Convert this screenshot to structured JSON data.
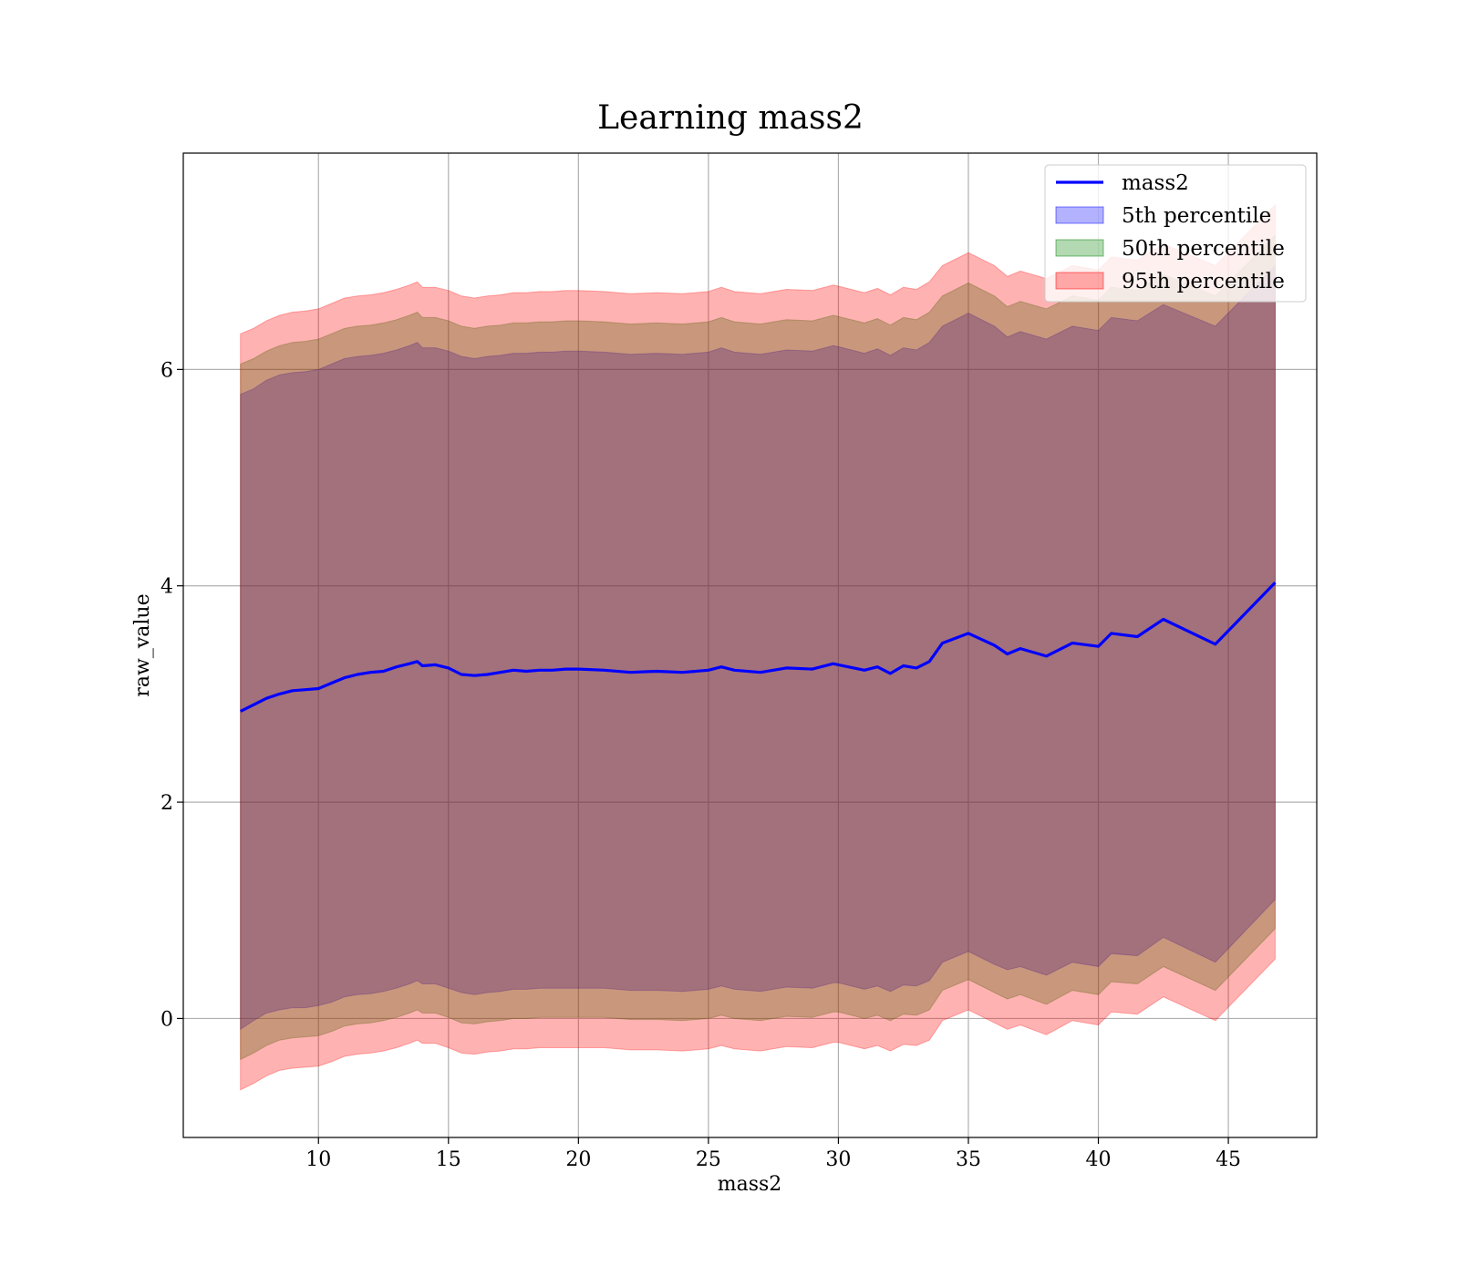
{
  "chart_data": {
    "type": "area",
    "title": "Learning mass2",
    "xlabel": "mass2",
    "ylabel": "raw_value",
    "xlim": [
      4.8,
      48.4
    ],
    "ylim": [
      -1.1,
      8.0
    ],
    "xticks": [
      10,
      15,
      20,
      25,
      30,
      35,
      40,
      45
    ],
    "yticks": [
      0,
      2,
      4,
      6
    ],
    "grid": true,
    "legend_position": "top-right",
    "colors": {
      "mean": "#0000ff",
      "p5": "#0000ff",
      "p50": "#008000",
      "p95": "#ff0000"
    },
    "fill_alpha": 0.3,
    "x": [
      7.0,
      7.5,
      8.0,
      8.5,
      9.0,
      9.5,
      10.0,
      10.5,
      11.0,
      11.5,
      12.0,
      12.5,
      13.0,
      13.5,
      13.8,
      14.0,
      14.5,
      15.0,
      15.5,
      16.0,
      16.5,
      17.0,
      17.5,
      18.0,
      18.5,
      19.0,
      19.5,
      20.0,
      21.0,
      22.0,
      23.0,
      24.0,
      25.0,
      25.5,
      26.0,
      27.0,
      28.0,
      29.0,
      29.8,
      30.0,
      31.0,
      31.5,
      32.0,
      32.5,
      33.0,
      33.5,
      34.0,
      35.0,
      36.0,
      36.5,
      37.0,
      38.0,
      39.0,
      40.0,
      40.5,
      41.5,
      42.5,
      44.5,
      46.8
    ],
    "series": [
      {
        "name": "mass2",
        "values": [
          2.84,
          2.9,
          2.96,
          3.0,
          3.03,
          3.04,
          3.05,
          3.1,
          3.15,
          3.18,
          3.2,
          3.21,
          3.25,
          3.28,
          3.3,
          3.26,
          3.27,
          3.24,
          3.18,
          3.17,
          3.18,
          3.2,
          3.22,
          3.21,
          3.22,
          3.22,
          3.23,
          3.23,
          3.22,
          3.2,
          3.21,
          3.2,
          3.22,
          3.25,
          3.22,
          3.2,
          3.24,
          3.23,
          3.28,
          3.27,
          3.22,
          3.25,
          3.19,
          3.26,
          3.24,
          3.3,
          3.47,
          3.56,
          3.45,
          3.37,
          3.42,
          3.35,
          3.47,
          3.44,
          3.56,
          3.53,
          3.69,
          3.46,
          4.03
        ]
      }
    ],
    "bands": [
      {
        "name": "5th percentile",
        "lower": [
          -0.1,
          -0.02,
          0.05,
          0.08,
          0.1,
          0.1,
          0.12,
          0.15,
          0.2,
          0.22,
          0.23,
          0.25,
          0.28,
          0.32,
          0.35,
          0.32,
          0.32,
          0.28,
          0.24,
          0.22,
          0.24,
          0.25,
          0.27,
          0.27,
          0.28,
          0.28,
          0.28,
          0.28,
          0.28,
          0.26,
          0.26,
          0.25,
          0.27,
          0.3,
          0.27,
          0.25,
          0.29,
          0.28,
          0.33,
          0.33,
          0.27,
          0.3,
          0.25,
          0.31,
          0.3,
          0.35,
          0.52,
          0.62,
          0.5,
          0.45,
          0.48,
          0.4,
          0.52,
          0.48,
          0.6,
          0.58,
          0.75,
          0.52,
          1.1
        ],
        "upper": [
          5.77,
          5.82,
          5.9,
          5.95,
          5.97,
          5.98,
          6.0,
          6.05,
          6.1,
          6.12,
          6.13,
          6.15,
          6.18,
          6.22,
          6.25,
          6.2,
          6.2,
          6.17,
          6.12,
          6.1,
          6.12,
          6.13,
          6.15,
          6.15,
          6.16,
          6.16,
          6.17,
          6.17,
          6.16,
          6.14,
          6.15,
          6.14,
          6.16,
          6.2,
          6.16,
          6.14,
          6.18,
          6.17,
          6.22,
          6.21,
          6.15,
          6.19,
          6.13,
          6.2,
          6.18,
          6.25,
          6.4,
          6.52,
          6.4,
          6.3,
          6.35,
          6.28,
          6.4,
          6.36,
          6.48,
          6.45,
          6.6,
          6.4,
          6.96
        ]
      },
      {
        "name": "50th percentile",
        "lower": [
          -0.38,
          -0.32,
          -0.25,
          -0.2,
          -0.18,
          -0.17,
          -0.16,
          -0.12,
          -0.07,
          -0.05,
          -0.04,
          -0.02,
          0.01,
          0.05,
          0.08,
          0.05,
          0.05,
          0.01,
          -0.04,
          -0.05,
          -0.03,
          -0.02,
          0.0,
          0.0,
          0.01,
          0.01,
          0.01,
          0.01,
          0.01,
          -0.01,
          -0.01,
          -0.02,
          0.0,
          0.03,
          0.0,
          -0.02,
          0.02,
          0.01,
          0.06,
          0.06,
          0.0,
          0.03,
          -0.02,
          0.04,
          0.03,
          0.08,
          0.26,
          0.36,
          0.24,
          0.18,
          0.22,
          0.13,
          0.26,
          0.22,
          0.34,
          0.32,
          0.48,
          0.26,
          0.83
        ],
        "upper": [
          6.05,
          6.1,
          6.17,
          6.22,
          6.25,
          6.26,
          6.28,
          6.33,
          6.38,
          6.4,
          6.41,
          6.43,
          6.46,
          6.5,
          6.53,
          6.48,
          6.48,
          6.45,
          6.4,
          6.38,
          6.4,
          6.41,
          6.43,
          6.43,
          6.44,
          6.44,
          6.45,
          6.45,
          6.44,
          6.42,
          6.43,
          6.42,
          6.44,
          6.48,
          6.44,
          6.42,
          6.46,
          6.45,
          6.5,
          6.49,
          6.43,
          6.47,
          6.41,
          6.48,
          6.46,
          6.53,
          6.68,
          6.8,
          6.68,
          6.58,
          6.63,
          6.56,
          6.68,
          6.64,
          6.76,
          6.73,
          6.88,
          6.68,
          7.24
        ]
      },
      {
        "name": "95th percentile",
        "lower": [
          -0.66,
          -0.6,
          -0.53,
          -0.48,
          -0.46,
          -0.45,
          -0.44,
          -0.4,
          -0.35,
          -0.33,
          -0.32,
          -0.3,
          -0.27,
          -0.23,
          -0.2,
          -0.23,
          -0.23,
          -0.27,
          -0.32,
          -0.33,
          -0.31,
          -0.3,
          -0.28,
          -0.28,
          -0.27,
          -0.27,
          -0.27,
          -0.27,
          -0.27,
          -0.29,
          -0.29,
          -0.3,
          -0.28,
          -0.25,
          -0.28,
          -0.3,
          -0.26,
          -0.27,
          -0.22,
          -0.22,
          -0.28,
          -0.25,
          -0.3,
          -0.24,
          -0.25,
          -0.2,
          -0.02,
          0.08,
          -0.04,
          -0.1,
          -0.06,
          -0.15,
          -0.02,
          -0.06,
          0.06,
          0.04,
          0.2,
          -0.02,
          0.55
        ],
        "upper": [
          6.33,
          6.38,
          6.45,
          6.5,
          6.53,
          6.54,
          6.56,
          6.61,
          6.66,
          6.68,
          6.69,
          6.71,
          6.74,
          6.78,
          6.81,
          6.76,
          6.76,
          6.73,
          6.68,
          6.66,
          6.68,
          6.69,
          6.71,
          6.71,
          6.72,
          6.72,
          6.73,
          6.73,
          6.72,
          6.7,
          6.71,
          6.7,
          6.72,
          6.76,
          6.72,
          6.7,
          6.74,
          6.73,
          6.78,
          6.77,
          6.71,
          6.75,
          6.69,
          6.76,
          6.74,
          6.81,
          6.96,
          7.08,
          6.96,
          6.86,
          6.91,
          6.84,
          6.96,
          6.92,
          7.04,
          7.01,
          7.16,
          6.96,
          7.52
        ]
      }
    ]
  }
}
